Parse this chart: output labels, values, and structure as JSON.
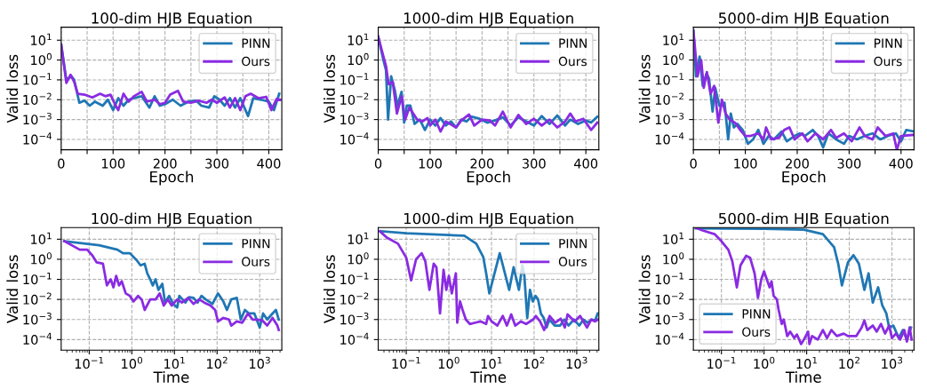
{
  "chart_data": [
    {
      "type": "line",
      "title": "100-dim HJB Equation",
      "xlabel": "Epoch",
      "ylabel": "Valid loss",
      "log": "y",
      "grid": true,
      "legend": "top right",
      "xlim": [
        0,
        425
      ],
      "ylim": [
        3e-05,
        45
      ],
      "xticks": [
        0,
        {
          "value": 50,
          "label": null
        },
        100,
        {
          "value": 150,
          "label": null
        },
        200,
        {
          "value": 250,
          "label": null
        },
        300,
        {
          "value": 350,
          "label": null
        },
        400
      ],
      "yticks": [
        {
          "value": 0.0001,
          "label": "10$^{−4}$"
        },
        {
          "value": 0.001,
          "label": "10$^{−3}$"
        },
        {
          "value": 0.01,
          "label": "10$^{−2}$"
        },
        {
          "value": 0.1,
          "label": "10$^{−1}$"
        },
        {
          "value": 1,
          "label": "10$^{0}$"
        },
        {
          "value": 10,
          "label": "10$^{1}$"
        }
      ],
      "series": [
        {
          "name": "PINN",
          "color": "#1f77b4",
          "x": [
            0,
            10,
            20,
            25,
            35,
            45,
            55,
            65,
            80,
            90,
            100,
            110,
            120,
            130,
            140,
            155,
            170,
            180,
            190,
            200,
            215,
            230,
            245,
            260,
            270,
            285,
            295,
            305,
            315,
            325,
            335,
            345,
            360,
            370,
            385,
            400,
            410,
            420
          ],
          "values": [
            6,
            0.1,
            0.15,
            0.1,
            0.007,
            0.009,
            0.005,
            0.008,
            0.005,
            0.01,
            0.003,
            0.012,
            0.005,
            0.01,
            0.012,
            0.015,
            0.004,
            0.015,
            0.005,
            0.006,
            0.01,
            0.005,
            0.008,
            0.009,
            0.005,
            0.004,
            0.015,
            0.01,
            0.005,
            0.012,
            0.004,
            0.012,
            0.0015,
            0.012,
            0.01,
            0.008,
            0.003,
            0.02
          ]
        },
        {
          "name": "Ours",
          "color": "#8a2be2",
          "x": [
            0,
            10,
            18,
            25,
            32,
            45,
            60,
            75,
            85,
            95,
            105,
            110,
            120,
            130,
            140,
            155,
            165,
            180,
            190,
            200,
            210,
            225,
            235,
            250,
            265,
            280,
            290,
            300,
            315,
            325,
            335,
            345,
            355,
            365,
            380,
            395,
            405,
            415,
            422
          ],
          "values": [
            6,
            0.07,
            0.18,
            0.08,
            0.02,
            0.018,
            0.013,
            0.02,
            0.015,
            0.018,
            0.005,
            0.003,
            0.02,
            0.008,
            0.015,
            0.025,
            0.008,
            0.01,
            0.006,
            0.007,
            0.018,
            0.028,
            0.008,
            0.007,
            0.009,
            0.007,
            0.01,
            0.007,
            0.013,
            0.004,
            0.012,
            0.003,
            0.015,
            0.02,
            0.012,
            0.014,
            0.003,
            0.011,
            0.01
          ]
        }
      ]
    },
    {
      "type": "line",
      "title": "1000-dim HJB Equation",
      "xlabel": "Epoch",
      "ylabel": "Valid loss",
      "log": "y",
      "grid": true,
      "legend": "top right",
      "xlim": [
        0,
        425
      ],
      "ylim": [
        3e-05,
        45
      ],
      "xticks": [
        0,
        {
          "value": 50,
          "label": null
        },
        100,
        {
          "value": 150,
          "label": null
        },
        200,
        {
          "value": 250,
          "label": null
        },
        300,
        {
          "value": 350,
          "label": null
        },
        400
      ],
      "yticks": [
        {
          "value": 0.0001,
          "label": "10$^{−4}$"
        },
        {
          "value": 0.001,
          "label": "10$^{−3}$"
        },
        {
          "value": 0.01,
          "label": "10$^{−2}$"
        },
        {
          "value": 0.1,
          "label": "10$^{−1}$"
        },
        {
          "value": 1,
          "label": "10$^{0}$"
        },
        {
          "value": 10,
          "label": "10$^{1}$"
        }
      ],
      "series": [
        {
          "name": "PINN",
          "color": "#1f77b4",
          "x": [
            0,
            10,
            15,
            19,
            25,
            32,
            37,
            45,
            50,
            55,
            62,
            70,
            80,
            90,
            100,
            110,
            120,
            130,
            140,
            150,
            160,
            170,
            180,
            195,
            210,
            225,
            240,
            255,
            270,
            285,
            300,
            315,
            330,
            345,
            360,
            370,
            385,
            400,
            410,
            422
          ],
          "values": [
            15,
            1,
            0.3,
            0.001,
            0.15,
            0.03,
            0.005,
            0.025,
            0.0007,
            0.005,
            0.005,
            0.0006,
            0.001,
            0.0003,
            0.001,
            0.0005,
            0.0012,
            0.0005,
            0.0008,
            0.0004,
            0.001,
            0.0008,
            0.0014,
            0.0011,
            0.0007,
            0.0009,
            0.0013,
            0.0005,
            0.0013,
            0.0008,
            0.0005,
            0.0015,
            0.0006,
            0.0016,
            0.0005,
            0.001,
            0.0006,
            0.0009,
            0.0007,
            0.0014
          ]
        },
        {
          "name": "Ours",
          "color": "#8a2be2",
          "x": [
            0,
            10,
            15,
            20,
            28,
            36,
            45,
            52,
            60,
            75,
            85,
            95,
            100,
            110,
            120,
            130,
            150,
            160,
            175,
            185,
            200,
            215,
            225,
            240,
            255,
            270,
            285,
            300,
            315,
            330,
            345,
            360,
            370,
            380,
            395,
            410,
            422
          ],
          "values": [
            15,
            1.5,
            0.5,
            0.06,
            0.08,
            0.002,
            0.015,
            0.001,
            0.004,
            0.001,
            0.0008,
            0.0012,
            0.0005,
            0.001,
            0.00025,
            0.0008,
            0.0004,
            0.0009,
            0.0018,
            0.0005,
            0.001,
            0.0009,
            0.0005,
            0.0025,
            0.0004,
            0.0017,
            0.0006,
            0.0011,
            0.0005,
            0.001,
            0.0004,
            0.0008,
            0.002,
            0.0008,
            0.0011,
            0.0003,
            0.0007
          ]
        }
      ]
    },
    {
      "type": "line",
      "title": "5000-dim HJB Equation",
      "xlabel": "Epoch",
      "ylabel": "Valid loss",
      "log": "y",
      "grid": true,
      "legend": "top right",
      "xlim": [
        0,
        425
      ],
      "ylim": [
        3e-05,
        45
      ],
      "xticks": [
        0,
        {
          "value": 50,
          "label": null
        },
        100,
        {
          "value": 150,
          "label": null
        },
        200,
        {
          "value": 250,
          "label": null
        },
        300,
        {
          "value": 350,
          "label": null
        },
        400
      ],
      "yticks": [
        {
          "value": 0.0001,
          "label": "10$^{−4}$"
        },
        {
          "value": 0.001,
          "label": "10$^{−3}$"
        },
        {
          "value": 0.01,
          "label": "10$^{−2}$"
        },
        {
          "value": 0.1,
          "label": "10$^{−1}$"
        },
        {
          "value": 1,
          "label": "10$^{0}$"
        },
        {
          "value": 10,
          "label": "10$^{1}$"
        }
      ],
      "series": [
        {
          "name": "PINN",
          "color": "#1f77b4",
          "x": [
            0,
            5,
            12,
            18,
            25,
            30,
            37,
            42,
            50,
            60,
            67,
            72,
            78,
            85,
            95,
            105,
            115,
            125,
            135,
            145,
            155,
            170,
            180,
            195,
            205,
            215,
            230,
            240,
            250,
            260,
            275,
            290,
            300,
            315,
            330,
            345,
            360,
            375,
            390,
            400,
            410,
            425
          ],
          "values": [
            30,
            0.15,
            1.5,
            0.05,
            0.2,
            0.12,
            0.0025,
            0.04,
            0.005,
            0.007,
            0.0001,
            0.002,
            0.0004,
            0.0006,
            0.0003,
            6e-05,
            0.0001,
            0.0003,
            6e-05,
            0.00015,
            0.0001,
            0.00025,
            8e-05,
            0.00015,
            0.0002,
            0.00015,
            0.0003,
            0.00015,
            4e-05,
            0.0002,
            0.0001,
            6e-05,
            0.00015,
            0.0001,
            0.00015,
            0.0002,
            0.0001,
            0.00015,
            0.0002,
            8e-05,
            0.0003,
            0.00025
          ]
        },
        {
          "name": "Ours",
          "color": "#8a2be2",
          "x": [
            0,
            8,
            15,
            20,
            26,
            33,
            40,
            48,
            55,
            62,
            70,
            80,
            90,
            100,
            110,
            125,
            135,
            140,
            150,
            165,
            175,
            185,
            195,
            210,
            220,
            235,
            250,
            265,
            275,
            290,
            305,
            320,
            330,
            345,
            355,
            370,
            385,
            392,
            400,
            425
          ],
          "values": [
            30,
            0.15,
            1,
            0.04,
            0.25,
            0.02,
            0.05,
            0.0007,
            0.01,
            0.002,
            0.001,
            0.0007,
            0.0003,
            0.00015,
            0.00015,
            0.0002,
            0.0001,
            0.0004,
            0.0001,
            0.00012,
            0.0003,
            0.0004,
            0.0001,
            0.0002,
            8e-05,
            0.0002,
            0.0001,
            0.0003,
            0.00012,
            0.0002,
            8e-05,
            0.0004,
            0.00015,
            0.0001,
            0.0004,
            0.00015,
            0.0002,
            3e-05,
            0.00015,
            0.00017
          ]
        }
      ]
    },
    {
      "type": "line",
      "title": "100-dim HJB Equation",
      "xlabel": "Time",
      "ylabel": "Valid loss",
      "log": "xy",
      "grid": true,
      "legend": "top right",
      "xlim": [
        0.022,
        3300
      ],
      "ylim": [
        3e-05,
        38
      ],
      "xticks": [
        {
          "value": 0.1,
          "label": "10$^{−1}$"
        },
        {
          "value": 1,
          "label": "10$^{0}$"
        },
        {
          "value": 10,
          "label": "10$^{1}$"
        },
        {
          "value": 100,
          "label": "10$^{2}$"
        },
        {
          "value": 1000,
          "label": "10$^{3}$"
        }
      ],
      "yticks": [
        {
          "value": 0.0001,
          "label": "10$^{−4}$"
        },
        {
          "value": 0.001,
          "label": "10$^{−3}$"
        },
        {
          "value": 0.01,
          "label": "10$^{−2}$"
        },
        {
          "value": 0.1,
          "label": "10$^{−1}$"
        },
        {
          "value": 1,
          "label": "10$^{0}$"
        },
        {
          "value": 10,
          "label": "10$^{1}$"
        }
      ],
      "series": [
        {
          "name": "PINN",
          "color": "#1f77b4",
          "x": [
            0.026,
            0.17,
            0.46,
            0.62,
            0.9,
            1.3,
            1.6,
            2.0,
            2.3,
            2.7,
            3.1,
            3.6,
            4.2,
            5.2,
            6,
            7.5,
            9.3,
            11.6,
            13,
            18,
            22,
            28,
            35,
            43,
            54,
            78,
            105,
            140,
            170,
            215,
            290,
            360,
            450,
            560,
            750,
            1000,
            1200,
            1500,
            2000,
            2400,
            2800
          ],
          "values": [
            8,
            5,
            3,
            2,
            2,
            0.9,
            0.5,
            0.6,
            0.2,
            0.1,
            0.05,
            0.1,
            0.03,
            0.06,
            0.007,
            0.015,
            0.006,
            0.004,
            0.015,
            0.007,
            0.013,
            0.012,
            0.007,
            0.015,
            0.01,
            0.006,
            0.02,
            0.008,
            0.003,
            0.01,
            0.012,
            0.001,
            0.003,
            0.002,
            0.002,
            0.0004,
            0.002,
            0.001,
            0.002,
            0.003,
            0.001
          ]
        },
        {
          "name": "Ours",
          "color": "#8a2be2",
          "x": [
            0.026,
            0.06,
            0.09,
            0.12,
            0.15,
            0.21,
            0.26,
            0.32,
            0.37,
            0.43,
            0.5,
            0.58,
            0.72,
            0.9,
            1.1,
            1.4,
            1.7,
            2.0,
            2.7,
            3.6,
            4.5,
            5.6,
            7,
            8.6,
            11.6,
            15,
            21,
            28,
            38,
            50,
            70,
            90,
            105,
            140,
            190,
            215,
            290,
            390,
            530,
            680,
            890,
            1150,
            1500,
            2000,
            2600,
            2800
          ],
          "values": [
            8,
            3,
            3,
            1.5,
            0.7,
            0.6,
            0.05,
            0.1,
            0.04,
            0.15,
            0.05,
            0.08,
            0.02,
            0.015,
            0.008,
            0.015,
            0.01,
            0.003,
            0.01,
            0.01,
            0.02,
            0.005,
            0.01,
            0.005,
            0.01,
            0.007,
            0.012,
            0.006,
            0.01,
            0.007,
            0.005,
            0.003,
            0.0008,
            0.0012,
            0.001,
            0.0005,
            0.0008,
            0.0007,
            0.002,
            0.001,
            0.001,
            0.0009,
            0.0005,
            0.0012,
            0.0005,
            0.0003
          ]
        }
      ]
    },
    {
      "type": "line",
      "title": "1000-dim HJB Equation",
      "xlabel": "Time",
      "ylabel": "Valid loss",
      "log": "xy",
      "grid": true,
      "legend": "top right",
      "xlim": [
        0.022,
        3300
      ],
      "ylim": [
        3e-05,
        38
      ],
      "xticks": [
        {
          "value": 0.1,
          "label": "10$^{−1}$"
        },
        {
          "value": 1,
          "label": "10$^{0}$"
        },
        {
          "value": 10,
          "label": "10$^{1}$"
        },
        {
          "value": 100,
          "label": "10$^{2}$"
        },
        {
          "value": 1000,
          "label": "10$^{3}$"
        }
      ],
      "yticks": [
        {
          "value": 0.0001,
          "label": "10$^{−4}$"
        },
        {
          "value": 0.001,
          "label": "10$^{−3}$"
        },
        {
          "value": 0.01,
          "label": "10$^{−2}$"
        },
        {
          "value": 0.1,
          "label": "10$^{−1}$"
        },
        {
          "value": 1,
          "label": "10$^{0}$"
        },
        {
          "value": 10,
          "label": "10$^{1}$"
        }
      ],
      "series": [
        {
          "name": "PINN",
          "color": "#1f77b4",
          "x": [
            0.025,
            0.1,
            1,
            2.3,
            4.4,
            6.4,
            7.5,
            8.9,
            15.6,
            26,
            33,
            44,
            53,
            59,
            69,
            80,
            93,
            108,
            124,
            144,
            168,
            196,
            228,
            304,
            408,
            512,
            640,
            856,
            1150,
            1440,
            1800,
            2240,
            2700,
            3100
          ],
          "values": [
            25,
            20,
            16,
            15,
            6,
            1.3,
            0.2,
            0.02,
            2,
            0.03,
            0.4,
            0.03,
            0.5,
            0.15,
            0.0012,
            0.03,
            0.008,
            0.015,
            0.01,
            0.002,
            0.0012,
            0.0004,
            0.001,
            0.0005,
            0.0005,
            0.001,
            0.0005,
            0.001,
            0.0005,
            0.001,
            0.0007,
            0.001,
            0.0009,
            0.002
          ]
        },
        {
          "name": "Ours",
          "color": "#8a2be2",
          "x": [
            0.024,
            0.035,
            0.064,
            0.1,
            0.13,
            0.17,
            0.23,
            0.28,
            0.35,
            0.44,
            0.51,
            0.62,
            0.75,
            0.87,
            1.0,
            1.17,
            1.46,
            1.57,
            1.83,
            2.1,
            2.5,
            3.1,
            4.2,
            5.6,
            7.5,
            8.3,
            10.1,
            13.7,
            18.4,
            23,
            29,
            36,
            49,
            65,
            95,
            110,
            138,
            172,
            232,
            312,
            420,
            525,
            610,
            890,
            1200,
            1740,
            2180,
            2700,
            3150
          ],
          "values": [
            25,
            12,
            6,
            1.2,
            0.09,
            1,
            2,
            0.8,
            0.03,
            0.6,
            0.4,
            0.002,
            0.3,
            0.03,
            0.15,
            0.02,
            0.2,
            0.0007,
            0.008,
            0.003,
            0.001,
            0.0006,
            0.0007,
            0.0008,
            0.0006,
            0.0015,
            0.0008,
            0.0005,
            0.0015,
            0.0005,
            0.0018,
            0.0005,
            0.0008,
            0.0006,
            0.001,
            0.0015,
            0.0008,
            0.0003,
            0.0015,
            0.0007,
            0.0011,
            0.0004,
            0.0018,
            0.0008,
            0.0015,
            0.0004,
            0.001,
            0.0008,
            0.001
          ]
        }
      ]
    },
    {
      "type": "line",
      "title": "5000-dim HJB Equation",
      "xlabel": "Time",
      "ylabel": "Valid loss",
      "log": "xy",
      "grid": true,
      "legend": "bottom left",
      "xlim": [
        0.022,
        3300
      ],
      "ylim": [
        3e-05,
        38
      ],
      "xticks": [
        {
          "value": 0.1,
          "label": "10$^{−1}$"
        },
        {
          "value": 1,
          "label": "10$^{0}$"
        },
        {
          "value": 10,
          "label": "10$^{1}$"
        },
        {
          "value": 100,
          "label": "10$^{2}$"
        },
        {
          "value": 1000,
          "label": "10$^{3}$"
        }
      ],
      "yticks": [
        {
          "value": 0.0001,
          "label": "10$^{−4}$"
        },
        {
          "value": 0.001,
          "label": "10$^{−3}$"
        },
        {
          "value": 0.01,
          "label": "10$^{−2}$"
        },
        {
          "value": 0.1,
          "label": "10$^{−1}$"
        },
        {
          "value": 1,
          "label": "10$^{0}$"
        },
        {
          "value": 10,
          "label": "10$^{1}$"
        }
      ],
      "series": [
        {
          "name": "PINN",
          "color": "#1f77b4",
          "x": [
            0.025,
            1,
            8.6,
            24,
            44,
            55,
            67,
            93,
            125,
            168,
            226,
            283,
            355,
            475,
            595,
            740,
            860,
            1080,
            1450,
            1800,
            2250,
            2800
          ],
          "values": [
            35,
            33,
            30,
            18,
            4,
            0.6,
            0.05,
            0.7,
            1.6,
            0.6,
            0.03,
            0.2,
            0.007,
            0.04,
            0.005,
            0.002,
            0.0004,
            0.0005,
            0.00012,
            0.0003,
            0.0001,
            0.0004
          ]
        },
        {
          "name": "Ours",
          "color": "#8a2be2",
          "x": [
            0.025,
            0.035,
            0.069,
            0.1,
            0.145,
            0.18,
            0.23,
            0.28,
            0.38,
            0.47,
            0.6,
            0.72,
            0.86,
            1.0,
            1.16,
            1.35,
            1.5,
            1.68,
            2.0,
            2.2,
            2.6,
            2.9,
            3.5,
            4.1,
            5.1,
            5.9,
            7.4,
            8.6,
            10.8,
            11.6,
            13.4,
            18.2,
            24,
            30,
            38,
            51,
            74,
            93,
            145,
            195,
            226,
            265,
            355,
            440,
            555,
            690,
            860,
            1000,
            1240,
            1560,
            1950,
            2250,
            2600,
            2900
          ],
          "values": [
            38,
            28,
            18,
            8,
            3,
            0.8,
            0.04,
            0.5,
            1.5,
            1.2,
            0.2,
            0.012,
            0.1,
            0.25,
            0.1,
            0.04,
            0.08,
            0.015,
            0.01,
            0.003,
            0.0006,
            0.001,
            0.00015,
            0.00025,
            0.00012,
            0.00018,
            6e-05,
            0.0001,
            0.00025,
            6e-05,
            0.00015,
            0.0001,
            0.0003,
            0.00012,
            0.0003,
            0.00015,
            0.0002,
            0.00015,
            0.00015,
            0.0004,
            0.0009,
            0.0003,
            0.0005,
            0.00025,
            0.0006,
            0.0002,
            0.0005,
            0.00012,
            0.0002,
            0.0001,
            0.0003,
            8e-05,
            0.0004,
            0.0001
          ]
        }
      ]
    }
  ]
}
